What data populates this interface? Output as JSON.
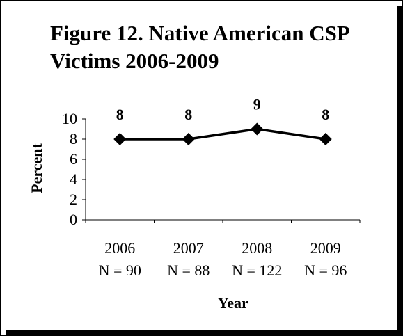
{
  "chart_data": {
    "type": "line",
    "title": "Figure 12.  Native American CSP Victims 2006-2009",
    "xlabel": "Year",
    "ylabel": "Percent",
    "ylim": [
      0,
      10
    ],
    "yticks": [
      0,
      2,
      4,
      6,
      8,
      10
    ],
    "grid": false,
    "legend": "none",
    "categories": [
      "2006",
      "2007",
      "2008",
      "2009"
    ],
    "category_sublabels": [
      "N = 90",
      "N = 88",
      "N = 122",
      "N = 96"
    ],
    "series": [
      {
        "values": [
          8,
          8,
          9,
          8
        ],
        "data_labels": [
          "8",
          "8",
          "9",
          "8"
        ],
        "color": "#000000",
        "marker": "diamond"
      }
    ]
  }
}
